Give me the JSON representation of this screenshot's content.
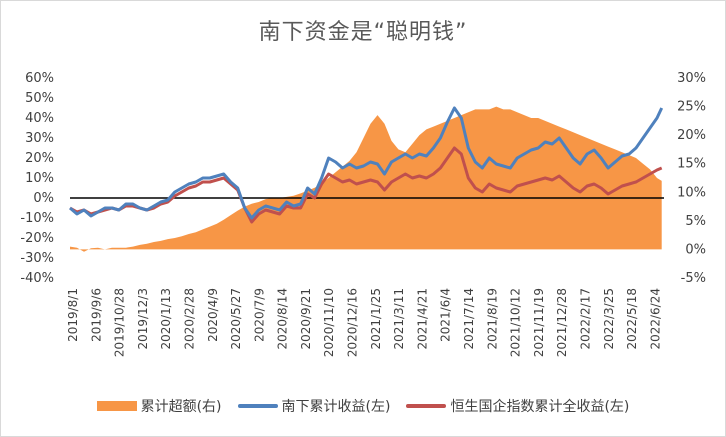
{
  "chart_data": {
    "type": "line",
    "title": "南下资金是“聪明钱”",
    "x_tick_labels": [
      "2019/8/1",
      "2019/9/6",
      "2019/10/28",
      "2019/12/3",
      "2020/1/13",
      "2020/2/28",
      "2020/4/9",
      "2020/5/27",
      "2020/7/9",
      "2020/8/14",
      "2020/9/21",
      "2020/11/10",
      "2020/12/16",
      "2021/1/25",
      "2021/3/11",
      "2021/4/21",
      "2021/6/4",
      "2021/7/14",
      "2021/8/19",
      "2021/10/12",
      "2021/11/19",
      "2021/12/28",
      "2022/2/17",
      "2022/3/25",
      "2022/5/18",
      "2022/6/24"
    ],
    "left_axis": {
      "ylim": [
        -40,
        60
      ],
      "ticks": [
        "-40%",
        "-30%",
        "-20%",
        "-10%",
        "0%",
        "10%",
        "20%",
        "30%",
        "40%",
        "50%",
        "60%"
      ]
    },
    "right_axis": {
      "ylim": [
        -5,
        30
      ],
      "ticks": [
        "-5%",
        "0%",
        "5%",
        "10%",
        "15%",
        "20%",
        "25%",
        "30%"
      ]
    },
    "x_range": [
      0,
      25.5
    ],
    "series": [
      {
        "name": "累计超额(右)",
        "type": "area",
        "axis": "right",
        "color": "#f79646",
        "x": [
          0,
          0.3,
          0.6,
          0.9,
          1.2,
          1.5,
          1.8,
          2.1,
          2.4,
          2.7,
          3.0,
          3.3,
          3.6,
          3.9,
          4.2,
          4.5,
          4.8,
          5.1,
          5.4,
          5.7,
          6.0,
          6.3,
          6.6,
          6.9,
          7.2,
          7.5,
          7.8,
          8.1,
          8.4,
          8.7,
          9.0,
          9.3,
          9.6,
          9.9,
          10.2,
          10.5,
          10.8,
          11.1,
          11.4,
          11.7,
          12.0,
          12.3,
          12.6,
          12.9,
          13.2,
          13.5,
          13.8,
          14.1,
          14.4,
          14.7,
          15.0,
          15.3,
          15.6,
          15.9,
          16.2,
          16.5,
          16.8,
          17.1,
          17.4,
          17.7,
          18.0,
          18.3,
          18.6,
          18.9,
          19.2,
          19.5,
          19.8,
          20.1,
          20.4,
          20.7,
          21.0,
          21.3,
          21.6,
          21.9,
          22.2,
          22.5,
          22.8,
          23.1,
          23.4,
          23.7,
          24.0,
          24.3,
          24.6,
          24.9,
          25.2,
          25.4
        ],
        "values": [
          0.5,
          0.3,
          -0.4,
          0.2,
          0.3,
          0.0,
          0.3,
          0.3,
          0.3,
          0.5,
          0.8,
          1.0,
          1.3,
          1.5,
          1.8,
          2.0,
          2.3,
          2.7,
          3.0,
          3.5,
          4.0,
          4.5,
          5.2,
          6.0,
          6.8,
          7.5,
          8.0,
          8.3,
          8.8,
          9.0,
          9.0,
          9.2,
          9.4,
          9.8,
          10.3,
          10.8,
          11.5,
          12.5,
          13.5,
          14.5,
          15.5,
          17.0,
          19.5,
          22.0,
          23.5,
          22.0,
          19.0,
          17.5,
          17.0,
          18.5,
          20.0,
          21.0,
          21.5,
          22.0,
          22.5,
          23.0,
          23.5,
          24.0,
          24.5,
          24.5,
          24.5,
          25.0,
          24.5,
          24.5,
          24.0,
          23.5,
          23.0,
          23.0,
          22.5,
          22.0,
          21.5,
          21.0,
          20.5,
          20.0,
          19.5,
          19.0,
          18.5,
          18.0,
          17.5,
          17.0,
          16.5,
          16.0,
          15.0,
          14.0,
          12.5,
          12.0
        ]
      },
      {
        "name": "南下累计收益(左)",
        "type": "line",
        "axis": "left",
        "color": "#4f81bd",
        "x": [
          0,
          0.3,
          0.6,
          0.9,
          1.2,
          1.5,
          1.8,
          2.1,
          2.4,
          2.7,
          3.0,
          3.3,
          3.6,
          3.9,
          4.2,
          4.5,
          4.8,
          5.1,
          5.4,
          5.7,
          6.0,
          6.3,
          6.6,
          6.9,
          7.2,
          7.5,
          7.8,
          8.1,
          8.4,
          8.7,
          9.0,
          9.3,
          9.6,
          9.9,
          10.2,
          10.5,
          10.8,
          11.1,
          11.4,
          11.7,
          12.0,
          12.3,
          12.6,
          12.9,
          13.2,
          13.5,
          13.8,
          14.1,
          14.4,
          14.7,
          15.0,
          15.3,
          15.6,
          15.9,
          16.2,
          16.5,
          16.8,
          17.1,
          17.4,
          17.7,
          18.0,
          18.3,
          18.6,
          18.9,
          19.2,
          19.5,
          19.8,
          20.1,
          20.4,
          20.7,
          21.0,
          21.3,
          21.6,
          21.9,
          22.2,
          22.5,
          22.8,
          23.1,
          23.4,
          23.7,
          24.0,
          24.3,
          24.6,
          24.9,
          25.2,
          25.4
        ],
        "values": [
          -5,
          -8,
          -6,
          -9,
          -7,
          -5,
          -5,
          -6,
          -3,
          -3,
          -5,
          -6,
          -4,
          -2,
          -1,
          3,
          5,
          7,
          8,
          10,
          10,
          11,
          12,
          8,
          5,
          -5,
          -10,
          -6,
          -4,
          -5,
          -6,
          -2,
          -4,
          -3,
          5,
          2,
          10,
          20,
          18,
          15,
          17,
          15,
          16,
          18,
          17,
          12,
          18,
          20,
          22,
          20,
          22,
          21,
          25,
          30,
          38,
          45,
          40,
          25,
          18,
          15,
          20,
          17,
          16,
          15,
          20,
          22,
          24,
          25,
          28,
          27,
          30,
          25,
          20,
          17,
          22,
          24,
          20,
          15,
          18,
          21,
          22,
          25,
          30,
          35,
          40,
          45
        ]
      },
      {
        "name": "恒生国企指数累计全收益(左)",
        "type": "line",
        "axis": "left",
        "color": "#c0504d",
        "x": [
          0,
          0.3,
          0.6,
          0.9,
          1.2,
          1.5,
          1.8,
          2.1,
          2.4,
          2.7,
          3.0,
          3.3,
          3.6,
          3.9,
          4.2,
          4.5,
          4.8,
          5.1,
          5.4,
          5.7,
          6.0,
          6.3,
          6.6,
          6.9,
          7.2,
          7.5,
          7.8,
          8.1,
          8.4,
          8.7,
          9.0,
          9.3,
          9.6,
          9.9,
          10.2,
          10.5,
          10.8,
          11.1,
          11.4,
          11.7,
          12.0,
          12.3,
          12.6,
          12.9,
          13.2,
          13.5,
          13.8,
          14.1,
          14.4,
          14.7,
          15.0,
          15.3,
          15.6,
          15.9,
          16.2,
          16.5,
          16.8,
          17.1,
          17.4,
          17.7,
          18.0,
          18.3,
          18.6,
          18.9,
          19.2,
          19.5,
          19.8,
          20.1,
          20.4,
          20.7,
          21.0,
          21.3,
          21.6,
          21.9,
          22.2,
          22.5,
          22.8,
          23.1,
          23.4,
          23.7,
          24.0,
          24.3,
          24.6,
          24.9,
          25.2,
          25.4
        ],
        "values": [
          -5,
          -7,
          -6,
          -8,
          -7,
          -6,
          -5,
          -6,
          -4,
          -4,
          -5,
          -6,
          -5,
          -3,
          -2,
          1,
          3,
          5,
          6,
          8,
          8,
          9,
          10,
          7,
          4,
          -5,
          -12,
          -8,
          -6,
          -7,
          -8,
          -4,
          -5,
          -5,
          2,
          0,
          7,
          12,
          10,
          8,
          9,
          7,
          8,
          9,
          8,
          4,
          8,
          10,
          12,
          10,
          11,
          10,
          12,
          15,
          20,
          25,
          22,
          10,
          5,
          3,
          7,
          5,
          4,
          3,
          6,
          7,
          8,
          9,
          10,
          9,
          11,
          8,
          5,
          3,
          6,
          7,
          5,
          2,
          4,
          6,
          7,
          8,
          10,
          12,
          14,
          15
        ]
      }
    ],
    "grid": false
  }
}
